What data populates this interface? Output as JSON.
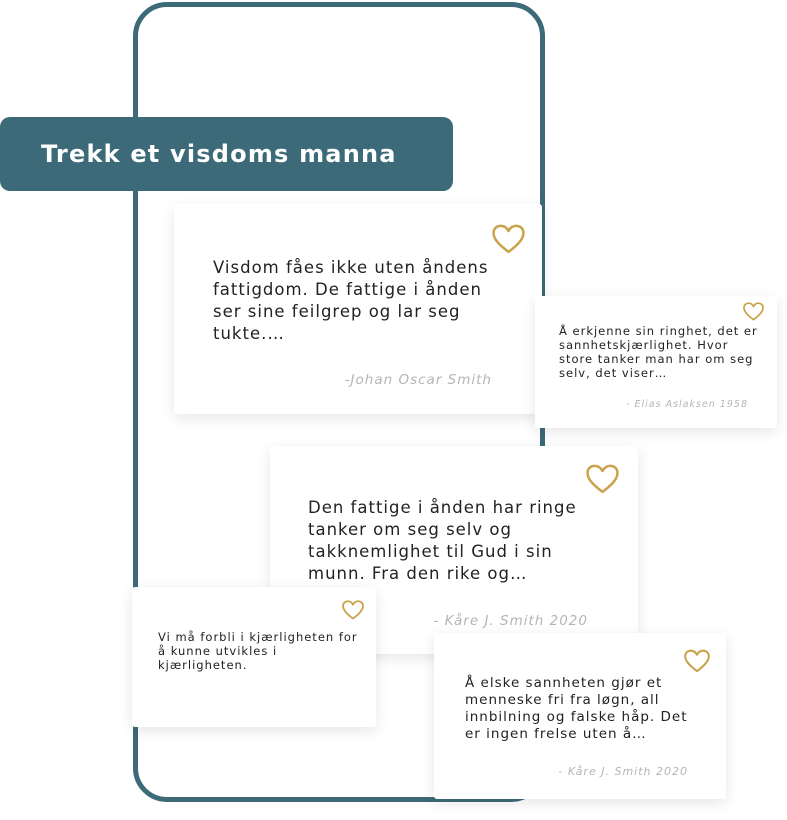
{
  "colors": {
    "brand": "#3d6a78",
    "heart": "#c9a24a",
    "author_text": "#b5b5b5"
  },
  "banner": {
    "title": "Trekk et visdoms manna"
  },
  "cards": [
    {
      "quote": "Visdom fåes ikke uten åndens fattigdom. De fattige i ånden ser sine feilgrep og lar seg tukte.…",
      "author": "-Johan Oscar Smith",
      "icon": "heart-icon"
    },
    {
      "quote": "Å erkjenne sin ringhet, det er sannhetskjærlighet. Hvor store tanker man har om seg selv, det viser…",
      "author": "- Elias Aslaksen 1958",
      "icon": "heart-icon"
    },
    {
      "quote": "Den fattige i ånden har ringe tanker om seg selv og takknemlighet til Gud i sin munn. Fra den rike og…",
      "author": "- Kåre J. Smith 2020",
      "icon": "heart-icon"
    },
    {
      "quote": "Vi må forbli i kjærligheten for å kunne utvikles i kjærligheten.",
      "icon": "heart-icon"
    },
    {
      "quote": "Å elske sannheten gjør et menneske fri fra løgn, all innbilning og falske håp. Det er ingen frelse uten å…",
      "author": "- Kåre J. Smith 2020",
      "icon": "heart-icon"
    }
  ]
}
